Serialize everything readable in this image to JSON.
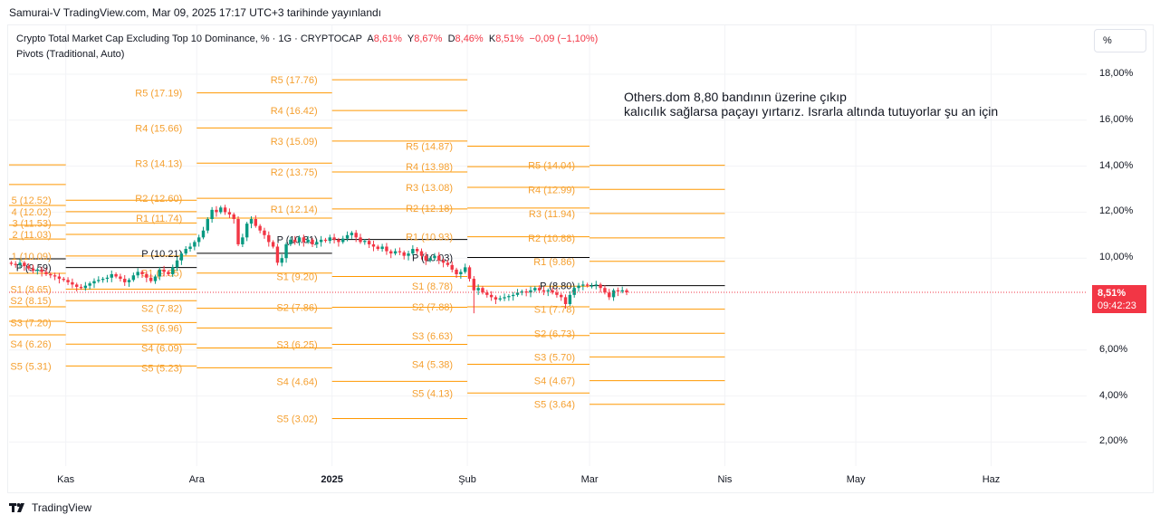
{
  "header": {
    "published": "Samurai-V TradingView.com, Mar 09, 2025 17:17 UTC+3 tarihinde yayınlandı"
  },
  "legend": {
    "symbol": "Crypto Total Market Cap Excluding Top 10 Dominance, % · 1G · CRYPTOCAP",
    "open_label": "A",
    "open": "8,61%",
    "high_label": "Y",
    "high": "8,67%",
    "low_label": "D",
    "low": "8,46%",
    "close_label": "K",
    "close": "8,51%",
    "change": "−0,09 (−1,10%)",
    "indicator": "Pivots (Traditional, Auto)"
  },
  "axis_button": "%",
  "annotation": {
    "line1": "Others.dom 8,80 bandının üzerine çıkıp",
    "line2": "kalıcılık sağlarsa paçayı yırtarız. Israrla altında tutuyorlar şu an için"
  },
  "price_badge": {
    "value": "8,51%",
    "countdown": "09:42:23"
  },
  "footer": {
    "brand": "TradingView"
  },
  "colors": {
    "up": "#089981",
    "down": "#f23645",
    "pivot": "#ff9800",
    "pivot_text": "#f5a030",
    "p_line": "#000000"
  },
  "chart_data": {
    "type": "candlestick",
    "title": "Crypto Total Market Cap Excluding Top 10 Dominance, %",
    "ylabel": "%",
    "ylim": [
      1.2,
      19.3
    ],
    "y_ticks": [
      "18,00%",
      "16,00%",
      "14,00%",
      "12,00%",
      "10,00%",
      "6,00%",
      "4,00%",
      "2,00%"
    ],
    "y_tick_values": [
      18,
      16,
      14,
      12,
      10,
      6,
      4,
      2
    ],
    "x_ticks": [
      "Kas",
      "Ara",
      "2025",
      "Şub",
      "Mar",
      "Nis",
      "May",
      "Haz"
    ],
    "x_tick_days": [
      13,
      43,
      74,
      105,
      133,
      164,
      194,
      225
    ],
    "last_price": 8.51,
    "closes": [
      9.75,
      9.7,
      9.8,
      9.65,
      9.55,
      9.45,
      9.5,
      9.4,
      9.3,
      9.25,
      9.2,
      9.1,
      9.05,
      8.95,
      8.85,
      8.75,
      8.7,
      8.8,
      8.9,
      9.0,
      9.05,
      9.1,
      9.15,
      9.3,
      9.2,
      9.1,
      8.95,
      9.05,
      9.25,
      9.4,
      9.3,
      9.15,
      9.0,
      9.2,
      9.5,
      9.4,
      9.3,
      9.6,
      9.9,
      10.2,
      10.4,
      10.5,
      10.7,
      10.9,
      11.2,
      11.7,
      12.1,
      12.0,
      12.2,
      12.0,
      11.9,
      11.7,
      10.6,
      10.9,
      11.5,
      11.7,
      11.4,
      11.2,
      11.0,
      10.7,
      10.5,
      9.8,
      10.0,
      10.6,
      10.8,
      10.7,
      10.9,
      10.7,
      10.8,
      10.6,
      10.7,
      10.8,
      10.75,
      10.9,
      10.8,
      10.7,
      10.85,
      11.0,
      11.1,
      10.9,
      10.7,
      10.75,
      10.6,
      10.5,
      10.4,
      10.5,
      10.3,
      10.2,
      10.3,
      10.25,
      10.1,
      10.2,
      10.4,
      10.3,
      10.1,
      9.9,
      10.0,
      10.1,
      9.9,
      9.8,
      9.7,
      9.5,
      9.3,
      9.4,
      9.6,
      9.1,
      8.6,
      8.7,
      8.5,
      8.4,
      8.3,
      8.2,
      8.25,
      8.3,
      8.35,
      8.4,
      8.5,
      8.55,
      8.5,
      8.6,
      8.7,
      8.6,
      8.55,
      8.6,
      8.5,
      8.4,
      8.3,
      8.0,
      8.4,
      8.7,
      8.8,
      8.85,
      8.8,
      8.8,
      8.85,
      8.7,
      8.5,
      8.3,
      8.6,
      8.55,
      8.6,
      8.51
    ],
    "pivot_periods": [
      {
        "start_day": 0,
        "end_day": 13,
        "labeled": false,
        "levels": [
          {
            "name": "R",
            "value": 14.06
          },
          {
            "name": "R",
            "value": 13.2
          },
          {
            "name": "R",
            "value": 12.29
          },
          {
            "name": "R",
            "value": 11.43
          },
          {
            "name": "R",
            "value": 10.83
          },
          {
            "name": "P",
            "value": 9.97
          },
          {
            "name": "S",
            "value": 9.34
          },
          {
            "name": "S",
            "value": 7.88
          },
          {
            "name": "S",
            "value": 7.25
          },
          {
            "name": "S",
            "value": 6.66
          }
        ]
      },
      {
        "start_day": 13,
        "end_day": 43,
        "labeled": true,
        "levels": [
          {
            "name": "5",
            "value": 12.52,
            "label": "5 (12.52)"
          },
          {
            "name": "4",
            "value": 12.02,
            "label": "4 (12.02)"
          },
          {
            "name": "3",
            "value": 11.53,
            "label": "3 (11.53)"
          },
          {
            "name": "2",
            "value": 11.03,
            "label": "2 (11.03)"
          },
          {
            "name": "1",
            "value": 10.09,
            "label": "1 (10.09)"
          },
          {
            "name": "P",
            "value": 9.59,
            "label": "P (9.59)"
          },
          {
            "name": "S1",
            "value": 8.65,
            "label": "S1 (8.65)"
          },
          {
            "name": "S2",
            "value": 8.15,
            "label": "S2 (8.15)"
          },
          {
            "name": "S3",
            "value": 7.2,
            "label": "S3 (7.20)"
          },
          {
            "name": "S4",
            "value": 6.26,
            "label": "S4 (6.26)"
          },
          {
            "name": "S5",
            "value": 5.31,
            "label": "S5 (5.31)"
          }
        ]
      },
      {
        "start_day": 43,
        "end_day": 74,
        "labeled": true,
        "levels": [
          {
            "name": "R5",
            "value": 17.19,
            "label": "R5 (17.19)"
          },
          {
            "name": "R4",
            "value": 15.66,
            "label": "R4 (15.66)"
          },
          {
            "name": "R3",
            "value": 14.13,
            "label": "R3 (14.13)"
          },
          {
            "name": "R2",
            "value": 12.6,
            "label": "R2 (12.60)"
          },
          {
            "name": "R1",
            "value": 11.74,
            "label": "R1 (11.74)"
          },
          {
            "name": "P",
            "value": 10.21,
            "label": "P (10.21)"
          },
          {
            "name": "S1",
            "value": 9.35,
            "label": "S1 (9.35)"
          },
          {
            "name": "S2",
            "value": 7.82,
            "label": "S2 (7.82)"
          },
          {
            "name": "S3",
            "value": 6.96,
            "label": "S3 (6.96)"
          },
          {
            "name": "S4",
            "value": 6.09,
            "label": "S4 (6.09)"
          },
          {
            "name": "S5",
            "value": 5.23,
            "label": "S5 (5.23)"
          }
        ]
      },
      {
        "start_day": 74,
        "end_day": 105,
        "labeled": true,
        "levels": [
          {
            "name": "R5",
            "value": 17.76,
            "label": "R5 (17.76)"
          },
          {
            "name": "R4",
            "value": 16.42,
            "label": "R4 (16.42)"
          },
          {
            "name": "R3",
            "value": 15.09,
            "label": "R3 (15.09)"
          },
          {
            "name": "R2",
            "value": 13.75,
            "label": "R2 (13.75)"
          },
          {
            "name": "R1",
            "value": 12.14,
            "label": "R1 (12.14)"
          },
          {
            "name": "P",
            "value": 10.81,
            "label": "P (10.81)"
          },
          {
            "name": "S1",
            "value": 9.2,
            "label": "S1 (9.20)"
          },
          {
            "name": "S2",
            "value": 7.86,
            "label": "S2 (7.86)"
          },
          {
            "name": "S3",
            "value": 6.25,
            "label": "S3 (6.25)"
          },
          {
            "name": "S4",
            "value": 4.64,
            "label": "S4 (4.64)"
          },
          {
            "name": "S5",
            "value": 3.02,
            "label": "S5 (3.02)"
          }
        ]
      },
      {
        "start_day": 105,
        "end_day": 133,
        "labeled": true,
        "levels": [
          {
            "name": "R5",
            "value": 14.87,
            "label": "R5 (14.87)"
          },
          {
            "name": "R4",
            "value": 13.98,
            "label": "R4 (13.98)"
          },
          {
            "name": "R3",
            "value": 13.08,
            "label": "R3 (13.08)"
          },
          {
            "name": "R2",
            "value": 12.18,
            "label": "R2 (12.18)"
          },
          {
            "name": "R1",
            "value": 10.93,
            "label": "R1 (10.93)"
          },
          {
            "name": "P",
            "value": 10.03,
            "label": "P (10.03)"
          },
          {
            "name": "S1",
            "value": 8.78,
            "label": "S1 (8.78)"
          },
          {
            "name": "S2",
            "value": 7.88,
            "label": "S2 (7.88)"
          },
          {
            "name": "S3",
            "value": 6.63,
            "label": "S3 (6.63)"
          },
          {
            "name": "S4",
            "value": 5.38,
            "label": "S4 (5.38)"
          },
          {
            "name": "S5",
            "value": 4.13,
            "label": "S5 (4.13)"
          }
        ]
      },
      {
        "start_day": 133,
        "end_day": 164,
        "labeled": true,
        "levels": [
          {
            "name": "R5",
            "value": 14.04,
            "label": "R5 (14.04)"
          },
          {
            "name": "R4",
            "value": 12.99,
            "label": "R4 (12.99)"
          },
          {
            "name": "R3",
            "value": 11.94,
            "label": "R3 (11.94)"
          },
          {
            "name": "R2",
            "value": 10.88,
            "label": "R2 (10.88)"
          },
          {
            "name": "R1",
            "value": 9.86,
            "label": "R1 (9.86)"
          },
          {
            "name": "P",
            "value": 8.8,
            "label": "P (8.80)"
          },
          {
            "name": "S1",
            "value": 7.78,
            "label": "S1 (7.78)"
          },
          {
            "name": "S2",
            "value": 6.73,
            "label": "S2 (6.73)"
          },
          {
            "name": "S3",
            "value": 5.7,
            "label": "S3 (5.70)"
          },
          {
            "name": "S4",
            "value": 4.67,
            "label": "S4 (4.67)"
          },
          {
            "name": "S5",
            "value": 3.64,
            "label": "S5 (3.64)"
          }
        ]
      }
    ]
  }
}
